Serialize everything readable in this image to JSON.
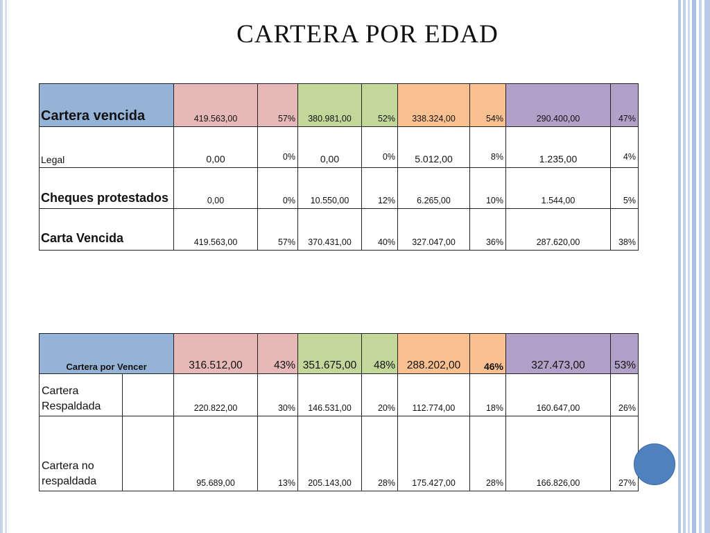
{
  "title": "CARTERA POR EDAD",
  "colors": {
    "blue": "#95b3d7",
    "pink": "#e6b8b7",
    "green": "#c4d79b",
    "orange": "#fac090",
    "purple": "#b1a0c7",
    "circle": "#4f81bd"
  },
  "table1": {
    "header": {
      "label": "Cartera vencida",
      "cells": [
        "419.563,00",
        "57%",
        "380.981,00",
        "52%",
        "338.324,00",
        "54%",
        "290.400,00",
        "47%"
      ]
    },
    "rows": [
      {
        "label": "Legal",
        "cells": [
          "0,00",
          "0%",
          "0,00",
          "0%",
          "5.012,00",
          "8%",
          "1.235,00",
          "4%"
        ]
      },
      {
        "label": "Cheques protestados",
        "cells": [
          "0,00",
          "0%",
          "10.550,00",
          "12%",
          "6.265,00",
          "10%",
          "1.544,00",
          "5%"
        ]
      },
      {
        "label": "Carta Vencida",
        "cells": [
          "419.563,00",
          "57%",
          "370.431,00",
          "40%",
          "327.047,00",
          "36%",
          "287.620,00",
          "38%"
        ]
      }
    ]
  },
  "table2": {
    "header": {
      "label": "Cartera por Vencer",
      "cells": [
        "316.512,00",
        "43%",
        "351.675,00",
        "48%",
        "288.202,00",
        "46%",
        "327.473,00",
        "53%"
      ]
    },
    "rows": [
      {
        "label": "Cartera Respaldada",
        "cells": [
          "220.822,00",
          "30%",
          "146.531,00",
          "20%",
          "112.774,00",
          "18%",
          "160.647,00",
          "26%"
        ]
      },
      {
        "label": "Cartera no respaldada",
        "cells": [
          "95.689,00",
          "13%",
          "205.143,00",
          "28%",
          "175.427,00",
          "28%",
          "166.826,00",
          "27%"
        ]
      }
    ]
  }
}
